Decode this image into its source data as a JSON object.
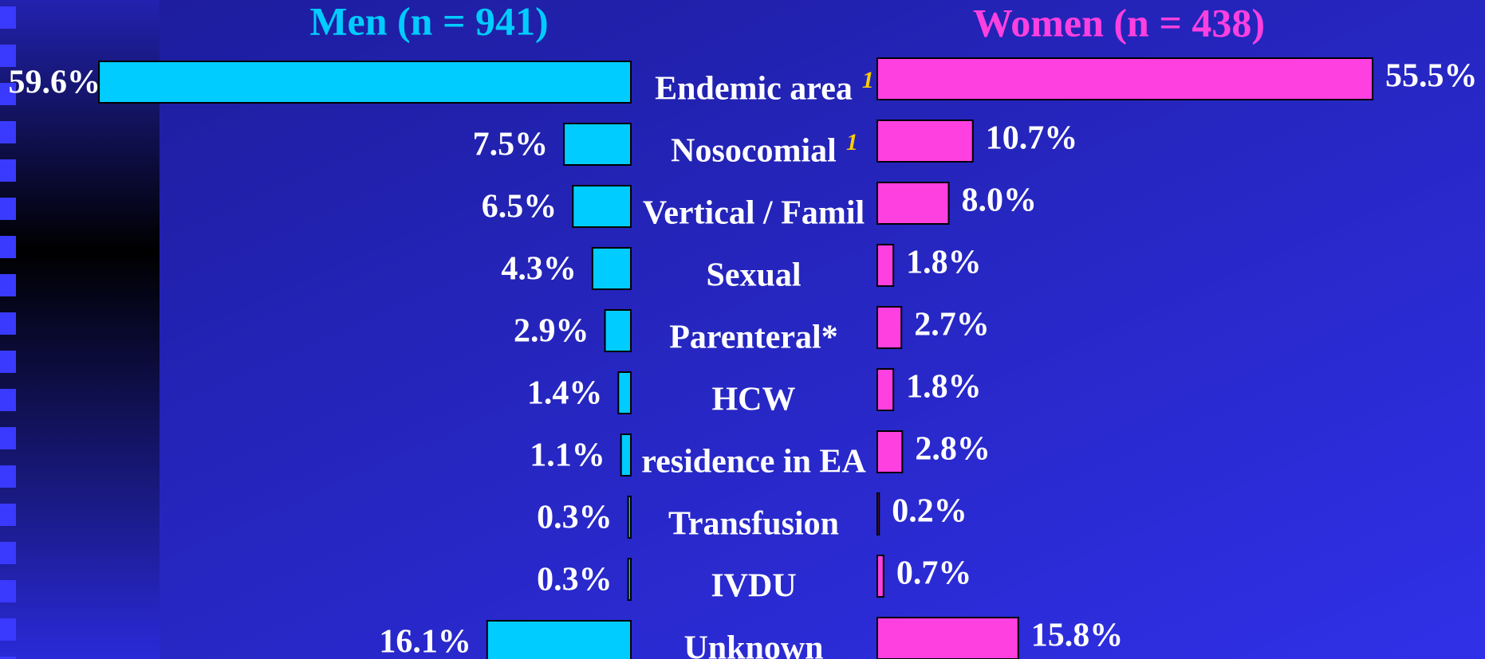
{
  "chart_data": {
    "type": "butterfly",
    "categories": [
      "Endemic area",
      "Nosocomial",
      "Vertical / Famil",
      "Sexual",
      "Parenteral*",
      "HCW",
      "residence in EA",
      "Transfusion",
      "IVDU",
      "Unknown"
    ],
    "category_notes": [
      "1",
      "1",
      null,
      null,
      null,
      null,
      null,
      null,
      null,
      null
    ],
    "series": [
      {
        "name": "Men (n = 941)",
        "color": "#00ccff",
        "values": [
          59.6,
          7.5,
          6.5,
          4.3,
          2.9,
          1.4,
          1.1,
          0.3,
          0.3,
          16.1
        ],
        "value_labels": [
          "59.6%",
          "7.5%",
          "6.5%",
          "4.3%",
          "2.9%",
          "1.4%",
          "1.1%",
          "0.3%",
          "0.3%",
          "16.1%"
        ]
      },
      {
        "name": "Women (n = 438)",
        "color": "#ff40e0",
        "values": [
          55.5,
          10.7,
          8.0,
          1.8,
          2.7,
          1.8,
          2.8,
          0.2,
          0.7,
          15.8
        ],
        "value_labels": [
          "55.5%",
          "10.7%",
          "8.0%",
          "1.8%",
          "2.7%",
          "1.8%",
          "2.8%",
          "0.2%",
          "0.7%",
          "15.8%"
        ]
      }
    ]
  }
}
